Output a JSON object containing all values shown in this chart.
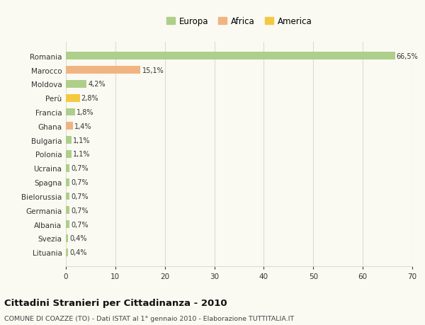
{
  "categories": [
    "Romania",
    "Marocco",
    "Moldova",
    "Perù",
    "Francia",
    "Ghana",
    "Bulgaria",
    "Polonia",
    "Ucraina",
    "Spagna",
    "Bielorussia",
    "Germania",
    "Albania",
    "Svezia",
    "Lituania"
  ],
  "values": [
    66.5,
    15.1,
    4.2,
    2.8,
    1.8,
    1.4,
    1.1,
    1.1,
    0.7,
    0.7,
    0.7,
    0.7,
    0.7,
    0.4,
    0.4
  ],
  "labels": [
    "66,5%",
    "15,1%",
    "4,2%",
    "2,8%",
    "1,8%",
    "1,4%",
    "1,1%",
    "1,1%",
    "0,7%",
    "0,7%",
    "0,7%",
    "0,7%",
    "0,7%",
    "0,4%",
    "0,4%"
  ],
  "colors": [
    "#aecf8b",
    "#f0b482",
    "#aecf8b",
    "#f5c842",
    "#aecf8b",
    "#f0b482",
    "#aecf8b",
    "#aecf8b",
    "#aecf8b",
    "#aecf8b",
    "#aecf8b",
    "#aecf8b",
    "#aecf8b",
    "#aecf8b",
    "#aecf8b"
  ],
  "legend": [
    {
      "label": "Europa",
      "color": "#aecf8b"
    },
    {
      "label": "Africa",
      "color": "#f0b482"
    },
    {
      "label": "America",
      "color": "#f5c842"
    }
  ],
  "xlim": [
    0,
    70
  ],
  "xticks": [
    0,
    10,
    20,
    30,
    40,
    50,
    60,
    70
  ],
  "title": "Cittadini Stranieri per Cittadinanza - 2010",
  "subtitle": "COMUNE DI COAZZE (TO) - Dati ISTAT al 1° gennaio 2010 - Elaborazione TUTTITALIA.IT",
  "background_color": "#fafaf2",
  "grid_color": "#ddddcc"
}
